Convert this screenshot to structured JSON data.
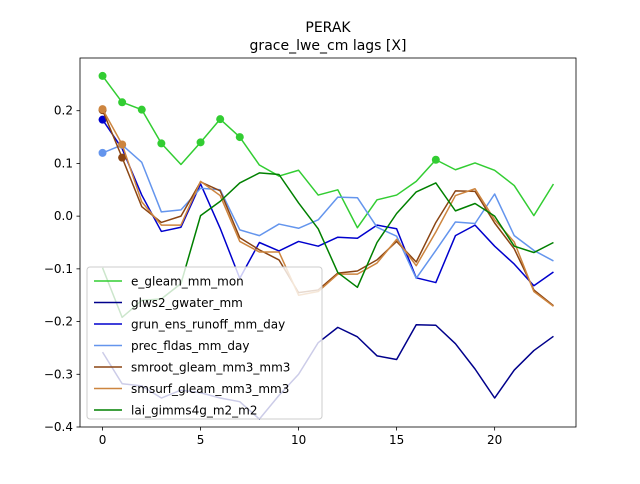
{
  "chart_data": {
    "type": "line",
    "title": "PERAK",
    "subtitle": "grace_lwe_cm lags [X]",
    "xlabel": "",
    "ylabel": "",
    "xlim": [
      -1.15,
      24.15
    ],
    "ylim": [
      -0.4,
      0.3
    ],
    "xticks": [
      0,
      5,
      10,
      15,
      20
    ],
    "yticks": [
      -0.4,
      -0.3,
      -0.2,
      -0.1,
      0.0,
      0.1,
      0.2
    ],
    "ytick_labels": [
      "−0.4",
      "−0.3",
      "−0.2",
      "−0.1",
      "0.0",
      "0.1",
      "0.2"
    ],
    "grid": false,
    "legend_position": "lower-left",
    "x": [
      0,
      1,
      2,
      3,
      4,
      5,
      6,
      7,
      8,
      9,
      10,
      11,
      12,
      13,
      14,
      15,
      16,
      17,
      18,
      19,
      20,
      21,
      22,
      23
    ],
    "series": [
      {
        "name": "e_gleam_mm_mon",
        "color": "#32cd32",
        "values": [
          0.266,
          0.216,
          0.202,
          0.138,
          0.098,
          0.14,
          0.184,
          0.15,
          0.097,
          0.076,
          0.087,
          0.04,
          0.05,
          -0.022,
          0.031,
          0.04,
          0.066,
          0.107,
          0.088,
          0.101,
          0.087,
          0.058,
          0.001,
          0.061
        ],
        "markers": [
          0,
          1,
          2,
          3,
          5,
          6,
          7,
          17
        ]
      },
      {
        "name": "glws2_gwater_mm",
        "color": "#00008b",
        "values": [
          -0.258,
          -0.318,
          -0.322,
          -0.345,
          -0.33,
          -0.335,
          -0.345,
          -0.352,
          -0.385,
          -0.34,
          -0.3,
          -0.24,
          -0.211,
          -0.229,
          -0.265,
          -0.272,
          -0.206,
          -0.207,
          -0.242,
          -0.29,
          -0.345,
          -0.292,
          -0.255,
          -0.228
        ],
        "markers": []
      },
      {
        "name": "grun_ens_runoff_mm_day",
        "color": "#0000cd",
        "values": [
          0.183,
          0.128,
          0.04,
          -0.029,
          -0.021,
          0.061,
          -0.023,
          -0.118,
          -0.05,
          -0.066,
          -0.048,
          -0.057,
          -0.04,
          -0.042,
          -0.017,
          -0.024,
          -0.117,
          -0.126,
          -0.037,
          -0.017,
          -0.057,
          -0.091,
          -0.132,
          -0.106
        ],
        "markers": [
          0
        ]
      },
      {
        "name": "prec_fldas_mm_day",
        "color": "#6495ed",
        "values": [
          0.12,
          0.135,
          0.102,
          0.008,
          0.012,
          0.053,
          0.05,
          -0.026,
          -0.037,
          -0.015,
          -0.023,
          -0.007,
          0.036,
          0.035,
          -0.021,
          -0.038,
          -0.118,
          -0.065,
          -0.011,
          -0.014,
          0.042,
          -0.037,
          -0.065,
          -0.085
        ],
        "markers": [
          0,
          1
        ]
      },
      {
        "name": "smroot_gleam_mm3_mm3",
        "color": "#8b4513",
        "values": [
          0.201,
          0.111,
          0.018,
          -0.012,
          0.0,
          0.065,
          0.048,
          -0.041,
          -0.064,
          -0.083,
          -0.145,
          -0.14,
          -0.108,
          -0.104,
          -0.083,
          -0.048,
          -0.087,
          -0.012,
          0.048,
          0.047,
          -0.013,
          -0.062,
          -0.14,
          -0.17
        ],
        "markers": [
          0,
          1
        ]
      },
      {
        "name": "smsurf_gleam_mm3_mm3",
        "color": "#cd853f",
        "values": [
          0.203,
          0.136,
          0.027,
          -0.017,
          -0.017,
          0.066,
          0.039,
          -0.048,
          -0.068,
          -0.068,
          -0.15,
          -0.143,
          -0.11,
          -0.11,
          -0.089,
          -0.044,
          -0.094,
          -0.03,
          0.039,
          0.052,
          -0.007,
          -0.049,
          -0.143,
          -0.171
        ],
        "markers": [
          0,
          1
        ]
      },
      {
        "name": "lai_gimms4g_m2_m2",
        "color": "#008000",
        "values": [
          -0.098,
          -0.192,
          -0.16,
          -0.157,
          -0.128,
          0.001,
          0.028,
          0.063,
          0.082,
          0.079,
          0.025,
          -0.024,
          -0.107,
          -0.135,
          -0.05,
          0.005,
          0.046,
          0.063,
          0.01,
          0.024,
          0.0,
          -0.057,
          -0.069,
          -0.05
        ],
        "markers": []
      }
    ]
  }
}
